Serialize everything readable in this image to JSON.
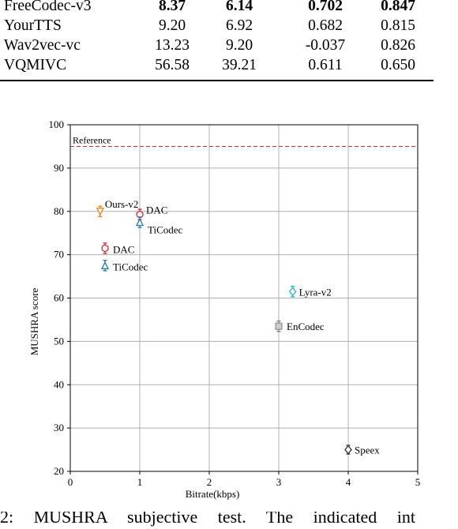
{
  "table": {
    "rows": [
      {
        "name": "FreeCodec-v3",
        "v1": "8.37",
        "v2": "6.14",
        "v3": "0.702",
        "v4": "0.847"
      },
      {
        "name": "YourTTS",
        "v1": "9.20",
        "v2": "6.92",
        "v3": "0.682",
        "v4": "0.815"
      },
      {
        "name": "Wav2vec-vc",
        "v1": "13.23",
        "v2": "9.20",
        "v3": "-0.037",
        "v4": "0.826"
      },
      {
        "name": "VQMIVC",
        "v1": "56.58",
        "v2": "39.21",
        "v3": "0.611",
        "v4": "0.650"
      }
    ]
  },
  "chart_data": {
    "type": "scatter",
    "xlabel": "Bitrate(kbps)",
    "ylabel": "MUSHRA score",
    "xlim": [
      0,
      5
    ],
    "ylim": [
      20,
      100
    ],
    "xticks": [
      "0",
      "1",
      "2",
      "3",
      "4",
      "5"
    ],
    "yticks": [
      "20",
      "30",
      "40",
      "50",
      "60",
      "70",
      "80",
      "90",
      "100"
    ],
    "grid": true,
    "reference": {
      "label": "Reference",
      "y": 95,
      "color": "#d62728"
    },
    "points": [
      {
        "label": "Ours-v2",
        "x": 0.43,
        "y": 80,
        "err": 1.2,
        "marker": "triangle-down",
        "color": "#ff7f0e"
      },
      {
        "label": "DAC",
        "x": 1.0,
        "y": 79.3,
        "err": 1.2,
        "marker": "circle",
        "color": "#d62728"
      },
      {
        "label": "TiCodec",
        "x": 1.0,
        "y": 77.5,
        "err": 1.2,
        "marker": "triangle-up",
        "color": "#1f77b4"
      },
      {
        "label": "DAC",
        "x": 0.5,
        "y": 71.5,
        "err": 1.2,
        "marker": "circle",
        "color": "#d62728"
      },
      {
        "label": "TiCodec",
        "x": 0.5,
        "y": 67.5,
        "err": 1.2,
        "marker": "triangle-up",
        "color": "#1f77b4"
      },
      {
        "label": "Lyra-v2",
        "x": 3.2,
        "y": 61.5,
        "err": 1.2,
        "marker": "diamond",
        "color": "#17becf"
      },
      {
        "label": "EnCodec",
        "x": 3.0,
        "y": 53.5,
        "err": 1.2,
        "marker": "square",
        "color": "#7f7f7f"
      },
      {
        "label": "Speex",
        "x": 4.0,
        "y": 25,
        "err": 1.0,
        "marker": "diamond",
        "color": "#333333"
      }
    ]
  },
  "caption": "2: MUSHRA subjective test. The indicated int"
}
